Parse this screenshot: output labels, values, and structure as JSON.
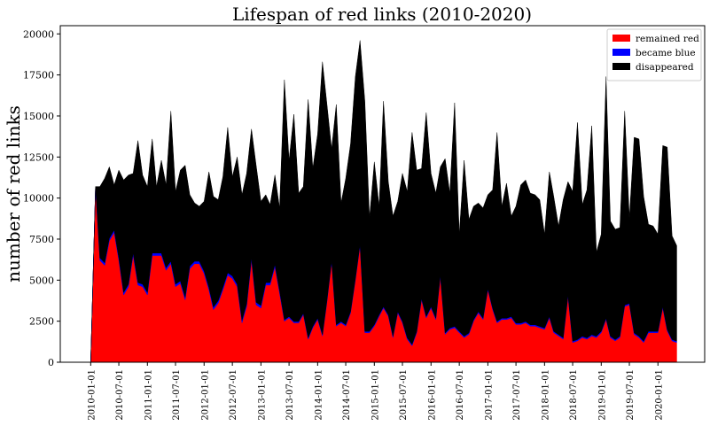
{
  "chart_data": {
    "type": "stacked_area",
    "title": "Lifespan of red links (2010-2020)",
    "ylabel": "number of red links",
    "x": [
      "2010-01-01",
      "2010-02-01",
      "2010-03-01",
      "2010-04-01",
      "2010-05-01",
      "2010-06-01",
      "2010-07-01",
      "2010-08-01",
      "2010-09-01",
      "2010-10-01",
      "2010-11-01",
      "2010-12-01",
      "2011-01-01",
      "2011-02-01",
      "2011-03-01",
      "2011-04-01",
      "2011-05-01",
      "2011-06-01",
      "2011-07-01",
      "2011-08-01",
      "2011-09-01",
      "2011-10-01",
      "2011-11-01",
      "2011-12-01",
      "2012-01-01",
      "2012-02-01",
      "2012-03-01",
      "2012-04-01",
      "2012-05-01",
      "2012-06-01",
      "2012-07-01",
      "2012-08-01",
      "2012-09-01",
      "2012-10-01",
      "2012-11-01",
      "2012-12-01",
      "2013-01-01",
      "2013-02-01",
      "2013-03-01",
      "2013-04-01",
      "2013-05-01",
      "2013-06-01",
      "2013-07-01",
      "2013-08-01",
      "2013-09-01",
      "2013-10-01",
      "2013-11-01",
      "2013-12-01",
      "2014-01-01",
      "2014-02-01",
      "2014-03-01",
      "2014-04-01",
      "2014-05-01",
      "2014-06-01",
      "2014-07-01",
      "2014-08-01",
      "2014-09-01",
      "2014-10-01",
      "2014-11-01",
      "2014-12-01",
      "2015-01-01",
      "2015-02-01",
      "2015-03-01",
      "2015-04-01",
      "2015-05-01",
      "2015-06-01",
      "2015-07-01",
      "2015-08-01",
      "2015-09-01",
      "2015-10-01",
      "2015-11-01",
      "2015-12-01",
      "2016-01-01",
      "2016-02-01",
      "2016-03-01",
      "2016-04-01",
      "2016-05-01",
      "2016-06-01",
      "2016-07-01",
      "2016-08-01",
      "2016-09-01",
      "2016-10-01",
      "2016-11-01",
      "2016-12-01",
      "2017-01-01",
      "2017-02-01",
      "2017-03-01",
      "2017-04-01",
      "2017-05-01",
      "2017-06-01",
      "2017-07-01",
      "2017-08-01",
      "2017-09-01",
      "2017-10-01",
      "2017-11-01",
      "2017-12-01",
      "2018-01-01",
      "2018-02-01",
      "2018-03-01",
      "2018-04-01",
      "2018-05-01",
      "2018-06-01",
      "2018-07-01",
      "2018-08-01",
      "2018-09-01",
      "2018-10-01",
      "2018-11-01",
      "2018-12-01",
      "2019-01-01",
      "2019-02-01",
      "2019-03-01",
      "2019-04-01",
      "2019-05-01",
      "2019-06-01",
      "2019-07-01",
      "2019-08-01",
      "2019-09-01",
      "2019-10-01",
      "2019-11-01",
      "2019-12-01",
      "2020-01-01",
      "2020-02-01",
      "2020-03-01",
      "2020-04-01",
      "2020-05-01"
    ],
    "series": [
      {
        "name": "remained red",
        "color": "#ff0000",
        "values": [
          0,
          10600,
          6200,
          5900,
          7400,
          7900,
          6200,
          4100,
          4600,
          6500,
          4700,
          4600,
          4100,
          6500,
          6500,
          6500,
          5600,
          6000,
          4600,
          4800,
          3800,
          5700,
          6000,
          6000,
          5400,
          4400,
          3200,
          3600,
          4400,
          5300,
          5100,
          4600,
          2400,
          3400,
          6200,
          3500,
          3300,
          4700,
          4700,
          5800,
          4200,
          2500,
          2700,
          2400,
          2400,
          2900,
          1400,
          2100,
          2600,
          1600,
          3600,
          6100,
          2200,
          2400,
          2200,
          3000,
          5000,
          7100,
          1800,
          1800,
          2200,
          2800,
          3300,
          2800,
          1500,
          3000,
          2400,
          1400,
          1000,
          1800,
          3800,
          2700,
          3300,
          2600,
          5200,
          1700,
          2000,
          2100,
          1800,
          1500,
          1700,
          2500,
          3000,
          2600,
          4400,
          3200,
          2400,
          2600,
          2600,
          2700,
          2300,
          2300,
          2400,
          2200,
          2200,
          2100,
          2000,
          2700,
          1800,
          1600,
          1400,
          4000,
          1200,
          1300,
          1500,
          1400,
          1600,
          1500,
          1800,
          2600,
          1500,
          1300,
          1500,
          3400,
          3500,
          1700,
          1500,
          1200,
          1800,
          1800,
          1800,
          3300,
          1900,
          1300,
          1200
        ]
      },
      {
        "name": "became blue",
        "color": "#0000ff",
        "values": [
          0,
          100,
          150,
          150,
          150,
          150,
          150,
          150,
          150,
          150,
          150,
          150,
          150,
          150,
          150,
          150,
          150,
          150,
          150,
          150,
          150,
          150,
          150,
          150,
          150,
          150,
          150,
          150,
          150,
          150,
          150,
          150,
          150,
          150,
          150,
          150,
          150,
          150,
          150,
          150,
          150,
          80,
          80,
          80,
          80,
          80,
          80,
          80,
          80,
          80,
          80,
          80,
          80,
          80,
          80,
          80,
          80,
          80,
          80,
          80,
          80,
          80,
          80,
          80,
          80,
          80,
          80,
          80,
          80,
          80,
          80,
          80,
          80,
          80,
          80,
          80,
          80,
          80,
          80,
          80,
          80,
          80,
          80,
          80,
          80,
          80,
          80,
          80,
          80,
          80,
          80,
          80,
          80,
          80,
          80,
          80,
          80,
          80,
          80,
          80,
          80,
          80,
          80,
          80,
          80,
          80,
          80,
          80,
          80,
          80,
          80,
          80,
          80,
          80,
          80,
          80,
          80,
          80,
          80,
          80,
          80,
          80,
          80,
          80,
          80
        ]
      },
      {
        "name": "disappeared",
        "color": "#000000",
        "values": [
          0,
          0,
          4350,
          5150,
          4350,
          2750,
          5350,
          6850,
          6650,
          4850,
          8650,
          6650,
          6450,
          6950,
          4050,
          5650,
          5050,
          9150,
          5650,
          6750,
          8050,
          4350,
          3550,
          3350,
          4250,
          7050,
          6750,
          6150,
          6750,
          8850,
          6050,
          7750,
          7650,
          7950,
          7850,
          8350,
          6350,
          5350,
          4750,
          5450,
          5050,
          14620,
          9520,
          12620,
          7820,
          7720,
          14520,
          9620,
          11220,
          16620,
          12120,
          6820,
          13420,
          7220,
          8920,
          10220,
          12320,
          12420,
          14020,
          6920,
          9920,
          6620,
          12520,
          8120,
          7320,
          6720,
          9020,
          8920,
          12920,
          9820,
          7920,
          12420,
          8120,
          7620,
          6620,
          10620,
          8220,
          13620,
          5920,
          10720,
          6920,
          6920,
          6620,
          6720,
          5720,
          7220,
          11520,
          6820,
          8220,
          6120,
          7120,
          8420,
          8620,
          8020,
          7920,
          7720,
          5720,
          8820,
          8220,
          6620,
          8420,
          6920,
          9120,
          13220,
          8020,
          9020,
          12720,
          5120,
          5920,
          14720,
          7020,
          6720,
          6620,
          11820,
          5220,
          11920,
          12020,
          8820,
          6520,
          6420,
          5920,
          9820,
          11120,
          6320,
          5820
        ]
      }
    ],
    "xlim": [
      "2009-06-19",
      "2020-10-28"
    ],
    "xticks": [
      "2010-01-01",
      "2010-07-01",
      "2011-01-01",
      "2011-07-01",
      "2012-01-01",
      "2012-07-01",
      "2013-01-01",
      "2013-07-01",
      "2014-01-01",
      "2014-07-01",
      "2015-01-01",
      "2015-07-01",
      "2016-01-01",
      "2016-07-01",
      "2017-01-01",
      "2017-07-01",
      "2018-01-01",
      "2018-07-01",
      "2019-01-01",
      "2019-07-01",
      "2020-01-01"
    ],
    "ylim": [
      0,
      20500
    ],
    "yticks": [
      0,
      2500,
      5000,
      7500,
      10000,
      12500,
      15000,
      17500,
      20000
    ],
    "legend": "upper right"
  }
}
